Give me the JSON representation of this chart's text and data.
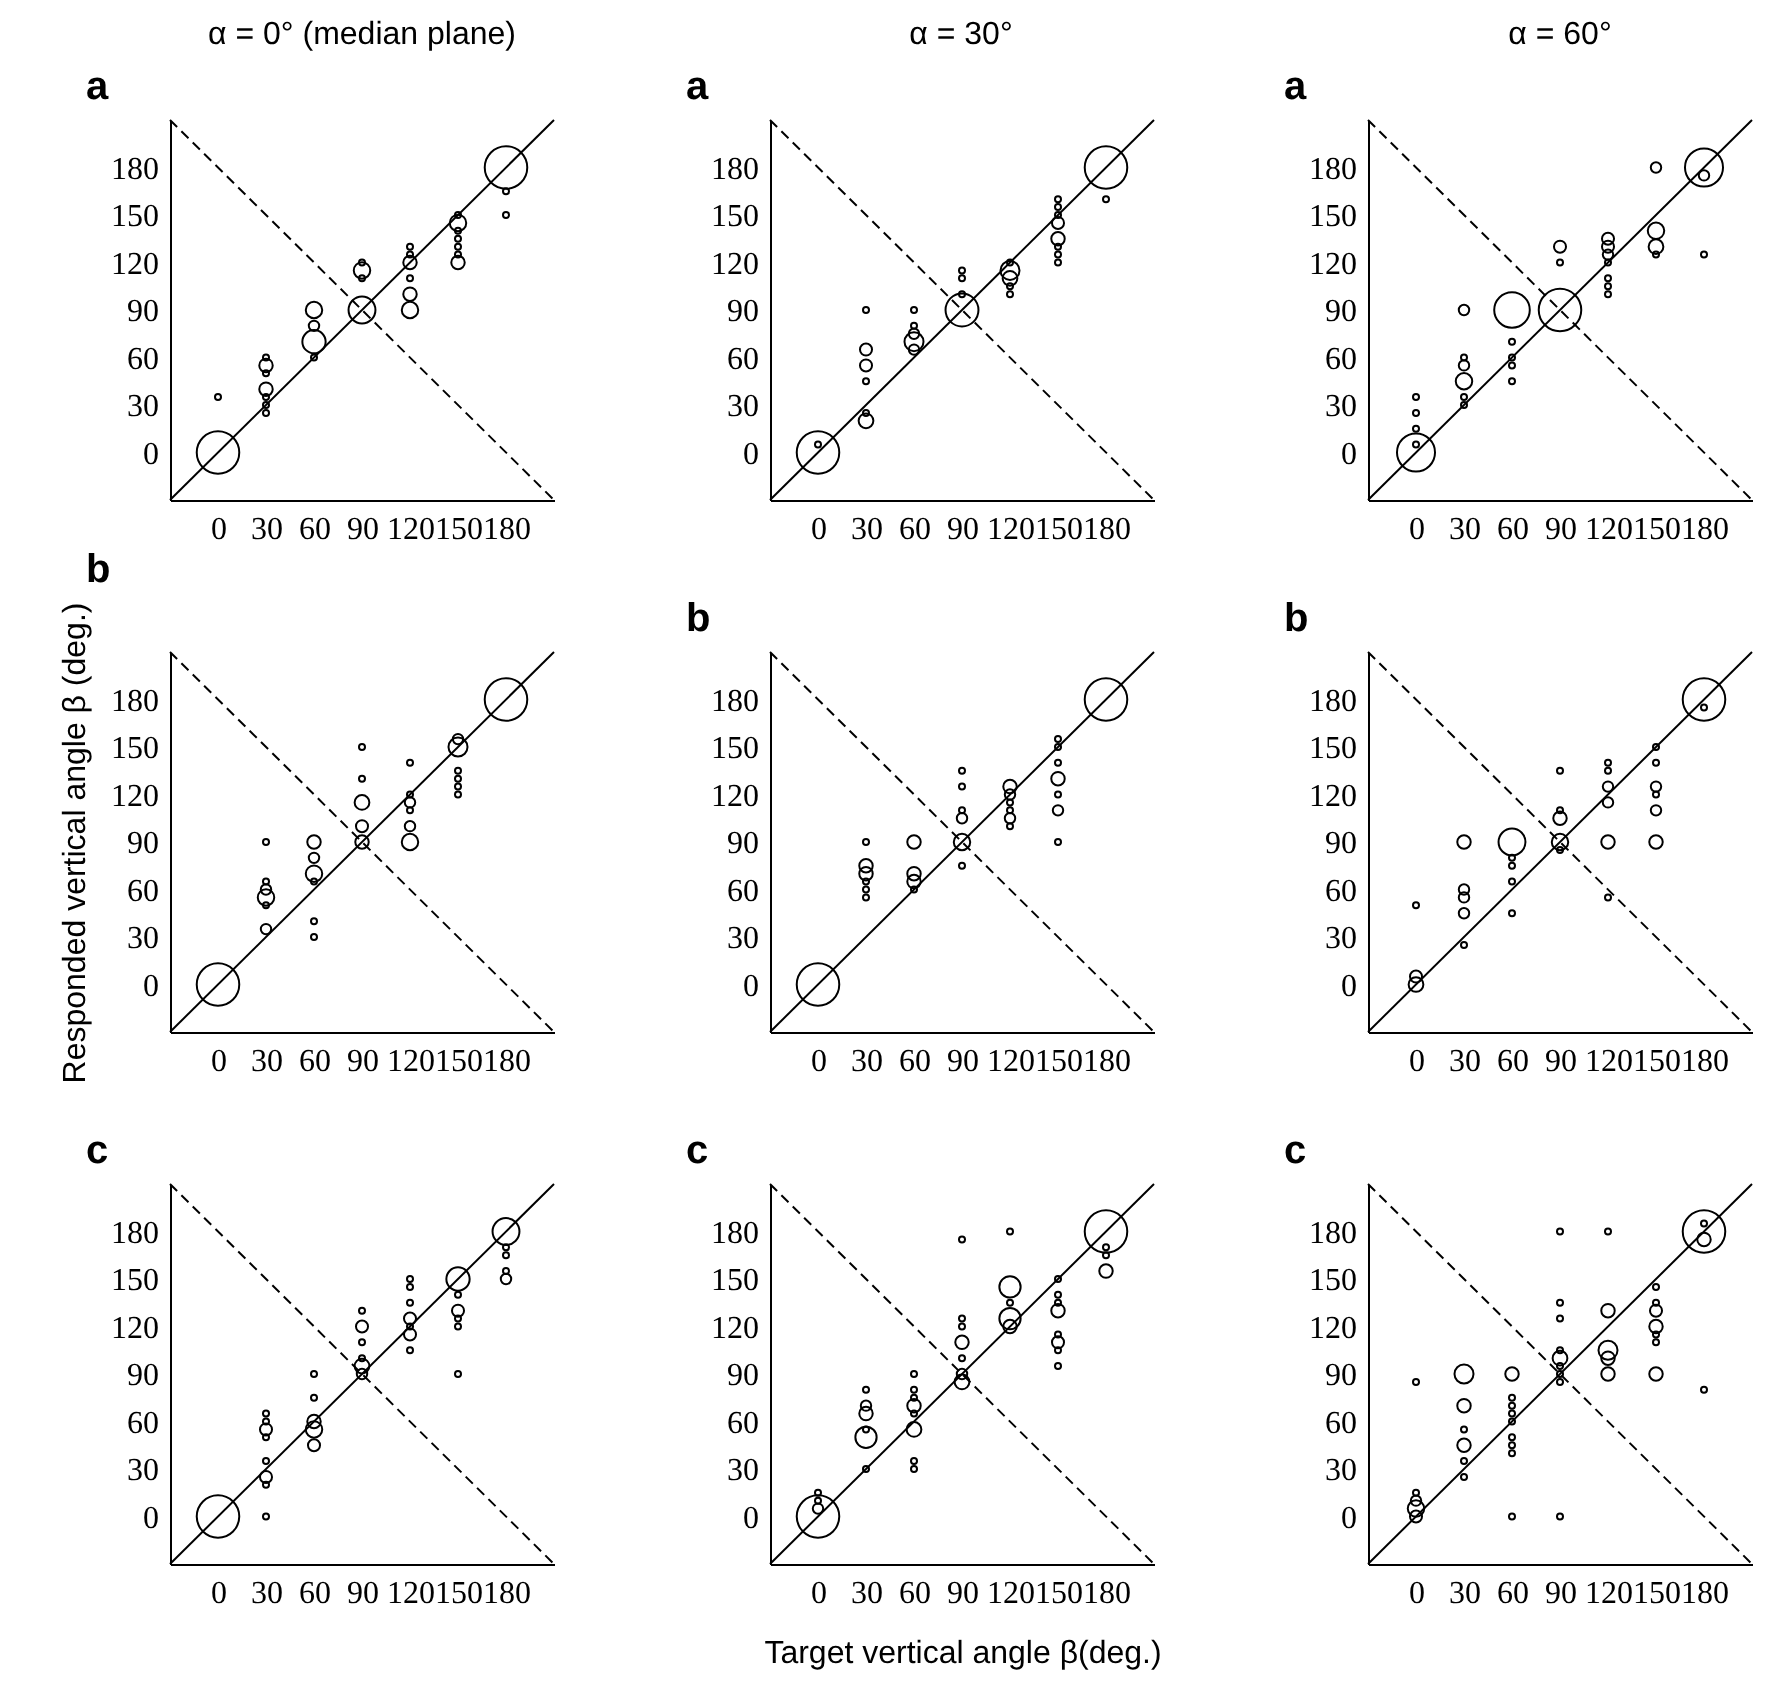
{
  "chart_data": [
    {
      "type": "bubble",
      "title": "α = 0° (median plane)",
      "subtitle": "a",
      "xlim": [
        -30,
        210
      ],
      "ylim": [
        -30,
        210
      ],
      "xticks": [
        0,
        30,
        60,
        90,
        120,
        150,
        180
      ],
      "yticks": [
        0,
        30,
        60,
        90,
        120,
        150,
        180
      ],
      "grid": false,
      "series": [
        {
          "color": "#000000",
          "marker": "circle",
          "x": [
            0,
            0,
            30,
            30,
            30,
            30,
            30,
            30,
            30,
            60,
            60,
            60,
            60,
            90,
            90,
            90,
            90,
            120,
            120,
            120,
            120,
            120,
            120,
            150,
            150,
            150,
            150,
            150,
            150,
            150,
            180,
            180,
            180
          ],
          "values": [
            0,
            35,
            60,
            55,
            50,
            40,
            35,
            30,
            25,
            90,
            80,
            70,
            60,
            120,
            115,
            110,
            90,
            130,
            125,
            120,
            110,
            100,
            90,
            150,
            145,
            140,
            135,
            130,
            125,
            120,
            180,
            165,
            150
          ],
          "sizes": [
            1,
            0.02,
            0.02,
            0.1,
            0.02,
            0.1,
            0.02,
            0.02,
            0.02,
            0.15,
            0.06,
            0.3,
            0.02,
            0.02,
            0.15,
            0.02,
            0.4,
            0.02,
            0.02,
            0.1,
            0.02,
            0.1,
            0.15,
            0.02,
            0.15,
            0.02,
            0.02,
            0.02,
            0.02,
            0.1,
            1,
            0.02,
            0.02
          ]
        },
        {
          "type": "line",
          "color": "#000000",
          "line_style": "solid",
          "x": [
            -30,
            210
          ],
          "values": [
            -30,
            210
          ]
        },
        {
          "type": "line",
          "color": "#000000",
          "line_style": "dashed",
          "x": [
            -30,
            210
          ],
          "values": [
            210,
            -30
          ]
        }
      ]
    },
    {
      "type": "bubble",
      "title": "α = 30°",
      "subtitle": "a",
      "xlim": [
        -30,
        210
      ],
      "ylim": [
        -30,
        210
      ],
      "xticks": [
        0,
        30,
        60,
        90,
        120,
        150,
        180
      ],
      "yticks": [
        0,
        30,
        60,
        90,
        120,
        150,
        180
      ],
      "grid": false,
      "series": [
        {
          "color": "#000000",
          "marker": "circle",
          "x": [
            0,
            0,
            30,
            30,
            30,
            30,
            30,
            30,
            60,
            60,
            60,
            60,
            60,
            90,
            90,
            90,
            90,
            120,
            120,
            120,
            120,
            120,
            150,
            150,
            150,
            150,
            150,
            150,
            150,
            150,
            180,
            180
          ],
          "values": [
            0,
            5,
            90,
            65,
            55,
            45,
            25,
            20,
            90,
            80,
            75,
            70,
            65,
            115,
            110,
            100,
            90,
            120,
            115,
            110,
            105,
            100,
            160,
            155,
            150,
            145,
            135,
            130,
            125,
            120,
            180,
            160
          ],
          "sizes": [
            1,
            0.02,
            0.02,
            0.08,
            0.08,
            0.02,
            0.02,
            0.12,
            0.02,
            0.02,
            0.06,
            0.2,
            0.06,
            0.02,
            0.02,
            0.02,
            0.6,
            0.02,
            0.2,
            0.12,
            0.02,
            0.02,
            0.02,
            0.02,
            0.02,
            0.08,
            0.1,
            0.02,
            0.02,
            0.02,
            1,
            0.02
          ]
        },
        {
          "type": "line",
          "color": "#000000",
          "line_style": "solid",
          "x": [
            -30,
            210
          ],
          "values": [
            -30,
            210
          ]
        },
        {
          "type": "line",
          "color": "#000000",
          "line_style": "dashed",
          "x": [
            -30,
            210
          ],
          "values": [
            210,
            -30
          ]
        }
      ]
    },
    {
      "type": "bubble",
      "title": "α = 60°",
      "subtitle": "a",
      "xlim": [
        -30,
        210
      ],
      "ylim": [
        -30,
        210
      ],
      "xticks": [
        0,
        30,
        60,
        90,
        120,
        150,
        180
      ],
      "yticks": [
        0,
        30,
        60,
        90,
        120,
        150,
        180
      ],
      "grid": false,
      "series": [
        {
          "color": "#000000",
          "marker": "circle",
          "x": [
            0,
            0,
            0,
            0,
            0,
            30,
            30,
            30,
            30,
            30,
            30,
            60,
            60,
            60,
            60,
            60,
            90,
            90,
            90,
            120,
            120,
            120,
            120,
            120,
            120,
            120,
            150,
            150,
            150,
            150,
            180,
            180,
            180
          ],
          "values": [
            0,
            35,
            25,
            15,
            5,
            90,
            60,
            55,
            45,
            35,
            30,
            90,
            70,
            60,
            55,
            45,
            130,
            120,
            90,
            135,
            130,
            125,
            120,
            110,
            105,
            100,
            180,
            140,
            130,
            125,
            180,
            175,
            125
          ],
          "sizes": [
            0.8,
            0.02,
            0.02,
            0.02,
            0.02,
            0.06,
            0.02,
            0.06,
            0.15,
            0.02,
            0.02,
            0.7,
            0.02,
            0.02,
            0.02,
            0.02,
            0.08,
            0.02,
            1,
            0.08,
            0.08,
            0.06,
            0.02,
            0.02,
            0.02,
            0.02,
            0.06,
            0.15,
            0.12,
            0.02,
            0.8,
            0.06,
            0.02
          ]
        },
        {
          "type": "line",
          "color": "#000000",
          "line_style": "solid",
          "x": [
            -30,
            210
          ],
          "values": [
            -30,
            210
          ]
        },
        {
          "type": "line",
          "color": "#000000",
          "line_style": "dashed",
          "x": [
            -30,
            210
          ],
          "values": [
            210,
            -30
          ]
        }
      ]
    },
    {
      "type": "bubble",
      "title": "b",
      "ylabel": "Responded vertical angle β (deg.)",
      "xlim": [
        -30,
        210
      ],
      "ylim": [
        -30,
        210
      ],
      "xticks": [
        0,
        30,
        60,
        90,
        120,
        150,
        180
      ],
      "yticks": [
        0,
        30,
        60,
        90,
        120,
        150,
        180
      ],
      "grid": false,
      "series": [
        {
          "color": "#000000",
          "marker": "circle",
          "x": [
            0,
            30,
            30,
            30,
            30,
            30,
            30,
            60,
            60,
            60,
            60,
            60,
            60,
            90,
            90,
            90,
            90,
            90,
            120,
            120,
            120,
            120,
            120,
            120,
            150,
            150,
            150,
            150,
            150,
            150,
            180
          ],
          "values": [
            0,
            90,
            65,
            60,
            55,
            50,
            35,
            90,
            80,
            70,
            65,
            40,
            30,
            150,
            130,
            115,
            100,
            90,
            140,
            120,
            115,
            110,
            100,
            90,
            155,
            150,
            135,
            130,
            125,
            120,
            180
          ],
          "sizes": [
            1,
            0.02,
            0.02,
            0.06,
            0.15,
            0.02,
            0.06,
            0.1,
            0.06,
            0.15,
            0.02,
            0.02,
            0.02,
            0.02,
            0.02,
            0.12,
            0.08,
            0.1,
            0.02,
            0.02,
            0.06,
            0.02,
            0.06,
            0.15,
            0.06,
            0.2,
            0.02,
            0.02,
            0.02,
            0.02,
            1
          ]
        },
        {
          "type": "line",
          "color": "#000000",
          "line_style": "solid",
          "x": [
            -30,
            210
          ],
          "values": [
            -30,
            210
          ]
        },
        {
          "type": "line",
          "color": "#000000",
          "line_style": "dashed",
          "x": [
            -30,
            210
          ],
          "values": [
            210,
            -30
          ]
        }
      ]
    },
    {
      "type": "bubble",
      "title": "b",
      "xlim": [
        -30,
        210
      ],
      "ylim": [
        -30,
        210
      ],
      "xticks": [
        0,
        30,
        60,
        90,
        120,
        150,
        180
      ],
      "yticks": [
        0,
        30,
        60,
        90,
        120,
        150,
        180
      ],
      "grid": false,
      "series": [
        {
          "color": "#000000",
          "marker": "circle",
          "x": [
            0,
            30,
            30,
            30,
            30,
            30,
            30,
            60,
            60,
            60,
            60,
            90,
            90,
            90,
            90,
            90,
            90,
            120,
            120,
            120,
            120,
            120,
            120,
            150,
            150,
            150,
            150,
            150,
            150,
            150,
            180
          ],
          "values": [
            0,
            90,
            75,
            70,
            65,
            60,
            55,
            90,
            70,
            65,
            60,
            135,
            125,
            110,
            105,
            90,
            75,
            125,
            120,
            115,
            110,
            105,
            100,
            155,
            150,
            140,
            130,
            120,
            110,
            90,
            180
          ],
          "sizes": [
            1,
            0.02,
            0.1,
            0.1,
            0.02,
            0.02,
            0.02,
            0.1,
            0.1,
            0.1,
            0.02,
            0.02,
            0.02,
            0.02,
            0.06,
            0.15,
            0.02,
            0.1,
            0.06,
            0.02,
            0.02,
            0.06,
            0.02,
            0.02,
            0.02,
            0.02,
            0.1,
            0.02,
            0.06,
            0.02,
            1
          ]
        },
        {
          "type": "line",
          "color": "#000000",
          "line_style": "solid",
          "x": [
            -30,
            210
          ],
          "values": [
            -30,
            210
          ]
        },
        {
          "type": "line",
          "color": "#000000",
          "line_style": "dashed",
          "x": [
            -30,
            210
          ],
          "values": [
            210,
            -30
          ]
        }
      ]
    },
    {
      "type": "bubble",
      "title": "b",
      "xlim": [
        -30,
        210
      ],
      "ylim": [
        -30,
        210
      ],
      "xticks": [
        0,
        30,
        60,
        90,
        120,
        150,
        180
      ],
      "yticks": [
        0,
        30,
        60,
        90,
        120,
        150,
        180
      ],
      "grid": false,
      "series": [
        {
          "color": "#000000",
          "marker": "circle",
          "x": [
            0,
            0,
            0,
            30,
            30,
            30,
            30,
            30,
            60,
            60,
            60,
            60,
            60,
            90,
            90,
            90,
            90,
            90,
            120,
            120,
            120,
            120,
            120,
            120,
            150,
            150,
            150,
            150,
            150,
            150,
            180,
            180
          ],
          "values": [
            50,
            5,
            0,
            90,
            60,
            55,
            45,
            25,
            90,
            80,
            75,
            65,
            45,
            135,
            110,
            105,
            90,
            85,
            140,
            135,
            125,
            115,
            90,
            55,
            150,
            140,
            125,
            120,
            110,
            90,
            180,
            175
          ],
          "sizes": [
            0.02,
            0.08,
            0.12,
            0.1,
            0.06,
            0.06,
            0.06,
            0.02,
            0.4,
            0.02,
            0.02,
            0.02,
            0.02,
            0.02,
            0.02,
            0.1,
            0.15,
            0.02,
            0.02,
            0.02,
            0.06,
            0.06,
            0.1,
            0.02,
            0.02,
            0.02,
            0.06,
            0.02,
            0.06,
            0.1,
            1,
            0.02
          ]
        },
        {
          "type": "line",
          "color": "#000000",
          "line_style": "solid",
          "x": [
            -30,
            210
          ],
          "values": [
            -30,
            210
          ]
        },
        {
          "type": "line",
          "color": "#000000",
          "line_style": "dashed",
          "x": [
            -30,
            210
          ],
          "values": [
            210,
            -30
          ]
        }
      ]
    },
    {
      "type": "bubble",
      "title": "c",
      "xlim": [
        -30,
        210
      ],
      "ylim": [
        -30,
        210
      ],
      "xticks": [
        0,
        30,
        60,
        90,
        120,
        150,
        180
      ],
      "yticks": [
        0,
        30,
        60,
        90,
        120,
        150,
        180
      ],
      "grid": false,
      "series": [
        {
          "color": "#000000",
          "marker": "circle",
          "x": [
            0,
            30,
            30,
            30,
            30,
            30,
            30,
            30,
            30,
            60,
            60,
            60,
            60,
            60,
            90,
            90,
            90,
            90,
            90,
            90,
            120,
            120,
            120,
            120,
            120,
            120,
            120,
            150,
            150,
            150,
            150,
            150,
            150,
            180,
            180,
            180,
            180,
            180
          ],
          "values": [
            0,
            65,
            60,
            55,
            50,
            35,
            25,
            20,
            0,
            90,
            75,
            60,
            55,
            45,
            130,
            120,
            110,
            100,
            95,
            90,
            150,
            145,
            135,
            125,
            120,
            115,
            105,
            150,
            140,
            130,
            125,
            120,
            90,
            180,
            170,
            165,
            155,
            150
          ],
          "sizes": [
            1,
            0.02,
            0.02,
            0.08,
            0.02,
            0.02,
            0.08,
            0.02,
            0.02,
            0.02,
            0.02,
            0.1,
            0.15,
            0.08,
            0.02,
            0.08,
            0.02,
            0.02,
            0.12,
            0.06,
            0.02,
            0.02,
            0.02,
            0.08,
            0.02,
            0.08,
            0.02,
            0.3,
            0.02,
            0.08,
            0.02,
            0.02,
            0.02,
            0.4,
            0.02,
            0.02,
            0.02,
            0.06
          ]
        },
        {
          "type": "line",
          "color": "#000000",
          "line_style": "solid",
          "x": [
            -30,
            210
          ],
          "values": [
            -30,
            210
          ]
        },
        {
          "type": "line",
          "color": "#000000",
          "line_style": "dashed",
          "x": [
            -30,
            210
          ],
          "values": [
            210,
            -30
          ]
        }
      ]
    },
    {
      "type": "bubble",
      "title": "c",
      "xlabel": "Target vertical angle β(deg.)",
      "xlim": [
        -30,
        210
      ],
      "ylim": [
        -30,
        210
      ],
      "xticks": [
        0,
        30,
        60,
        90,
        120,
        150,
        180
      ],
      "yticks": [
        0,
        30,
        60,
        90,
        120,
        150,
        180
      ],
      "grid": false,
      "series": [
        {
          "color": "#000000",
          "marker": "circle",
          "x": [
            0,
            0,
            0,
            0,
            30,
            30,
            30,
            30,
            30,
            30,
            60,
            60,
            60,
            60,
            60,
            60,
            60,
            60,
            90,
            90,
            90,
            90,
            90,
            90,
            90,
            120,
            120,
            120,
            120,
            120,
            150,
            150,
            150,
            150,
            150,
            150,
            150,
            150,
            180,
            180,
            180,
            180
          ],
          "values": [
            0,
            15,
            10,
            5,
            80,
            70,
            65,
            55,
            50,
            30,
            90,
            80,
            75,
            70,
            65,
            55,
            35,
            30,
            175,
            125,
            120,
            110,
            100,
            90,
            85,
            180,
            145,
            135,
            125,
            120,
            150,
            140,
            135,
            130,
            115,
            110,
            105,
            95,
            180,
            170,
            165,
            155
          ],
          "sizes": [
            1,
            0.02,
            0.02,
            0.06,
            0.02,
            0.06,
            0.1,
            0.02,
            0.25,
            0.02,
            0.02,
            0.02,
            0.02,
            0.1,
            0.02,
            0.12,
            0.02,
            0.02,
            0.02,
            0.02,
            0.02,
            0.1,
            0.02,
            0.06,
            0.12,
            0.02,
            0.25,
            0.02,
            0.25,
            0.1,
            0.02,
            0.02,
            0.02,
            0.1,
            0.02,
            0.08,
            0.02,
            0.02,
            1,
            0.02,
            0.02,
            0.1
          ]
        },
        {
          "type": "line",
          "color": "#000000",
          "line_style": "solid",
          "x": [
            -30,
            210
          ],
          "values": [
            -30,
            210
          ]
        },
        {
          "type": "line",
          "color": "#000000",
          "line_style": "dashed",
          "x": [
            -30,
            210
          ],
          "values": [
            210,
            -30
          ]
        }
      ]
    },
    {
      "type": "bubble",
      "title": "c",
      "xlim": [
        -30,
        210
      ],
      "ylim": [
        -30,
        210
      ],
      "xticks": [
        0,
        30,
        60,
        90,
        120,
        150,
        180
      ],
      "yticks": [
        0,
        30,
        60,
        90,
        120,
        150,
        180
      ],
      "grid": false,
      "series": [
        {
          "color": "#000000",
          "marker": "circle",
          "x": [
            0,
            0,
            0,
            0,
            0,
            30,
            30,
            30,
            30,
            30,
            30,
            60,
            60,
            60,
            60,
            60,
            60,
            60,
            60,
            60,
            90,
            90,
            90,
            90,
            90,
            90,
            90,
            90,
            90,
            120,
            120,
            120,
            120,
            120,
            150,
            150,
            150,
            150,
            150,
            150,
            150,
            180,
            180,
            180,
            180
          ],
          "values": [
            85,
            15,
            10,
            5,
            0,
            90,
            70,
            55,
            45,
            35,
            25,
            90,
            75,
            70,
            65,
            60,
            50,
            45,
            40,
            0,
            180,
            135,
            125,
            105,
            100,
            95,
            90,
            85,
            0,
            180,
            130,
            105,
            100,
            90,
            145,
            135,
            130,
            120,
            115,
            110,
            90,
            185,
            180,
            175,
            80
          ],
          "sizes": [
            0.02,
            0.02,
            0.06,
            0.15,
            0.08,
            0.2,
            0.1,
            0.02,
            0.1,
            0.02,
            0.02,
            0.1,
            0.02,
            0.02,
            0.02,
            0.02,
            0.02,
            0.02,
            0.02,
            0.02,
            0.02,
            0.02,
            0.02,
            0.02,
            0.12,
            0.02,
            0.02,
            0.02,
            0.02,
            0.02,
            0.1,
            0.2,
            0.1,
            0.1,
            0.02,
            0.02,
            0.08,
            0.1,
            0.02,
            0.02,
            0.1,
            0.02,
            1,
            0.1,
            0.02
          ]
        },
        {
          "type": "line",
          "color": "#000000",
          "line_style": "solid",
          "x": [
            -30,
            210
          ],
          "values": [
            -30,
            210
          ]
        },
        {
          "type": "line",
          "color": "#000000",
          "line_style": "dashed",
          "x": [
            -30,
            210
          ],
          "values": [
            210,
            -30
          ]
        }
      ]
    }
  ]
}
